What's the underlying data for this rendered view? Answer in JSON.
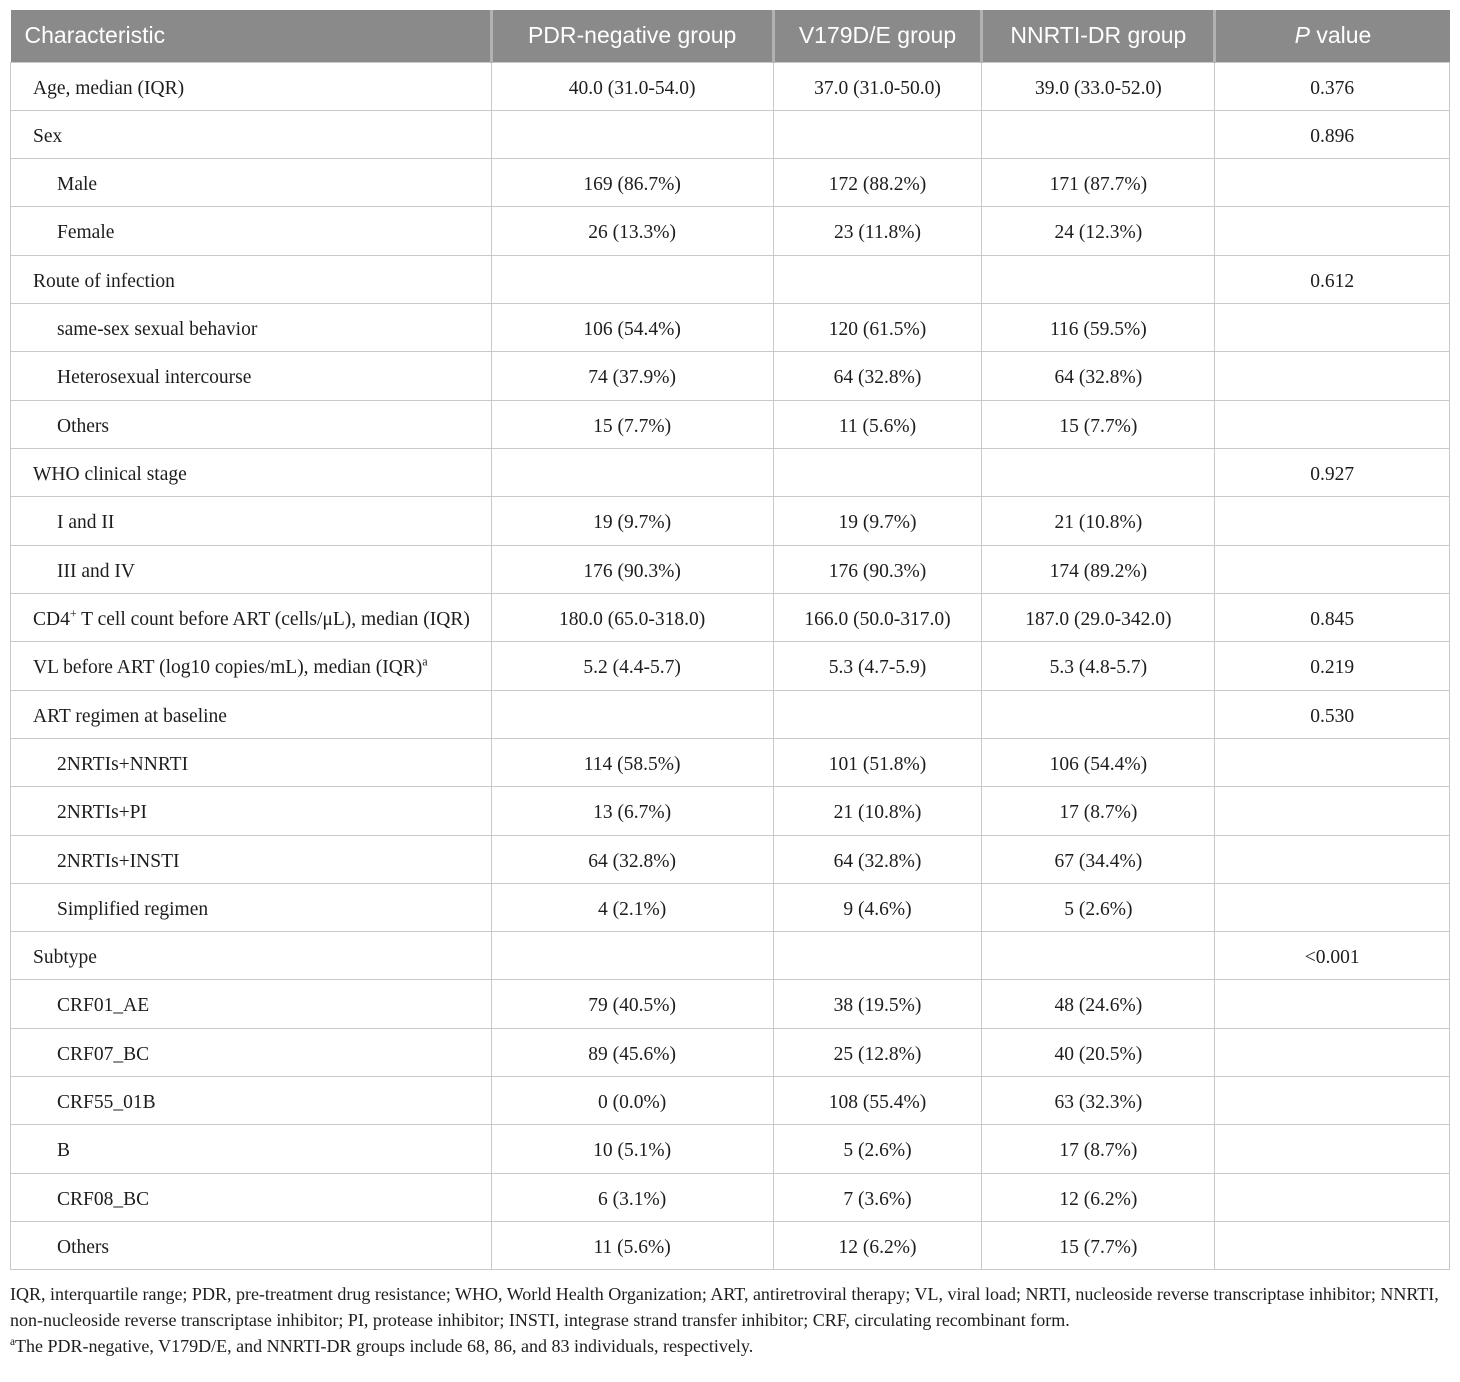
{
  "colors": {
    "header_bg": "#8a8a8a",
    "header_divider": "#b2b2b2",
    "header_text": "#ffffff",
    "grid": "#c9c9c9",
    "body_text": "#1d1d1d"
  },
  "table": {
    "columns": [
      "Characteristic",
      "PDR-negative group",
      "V179D/E group",
      "NNRTI-DR group",
      "*P* value"
    ],
    "rows": [
      {
        "label": "Age, median (IQR)",
        "indent": false,
        "values": [
          "40.0 (31.0-54.0)",
          "37.0 (31.0-50.0)",
          "39.0 (33.0-52.0)"
        ],
        "p": "0.376"
      },
      {
        "label": "Sex",
        "indent": false,
        "values": [
          "",
          "",
          ""
        ],
        "p": "0.896"
      },
      {
        "label": "Male",
        "indent": true,
        "values": [
          "169 (86.7%)",
          "172 (88.2%)",
          "171 (87.7%)"
        ],
        "p": ""
      },
      {
        "label": "Female",
        "indent": true,
        "values": [
          "26 (13.3%)",
          "23 (11.8%)",
          "24 (12.3%)"
        ],
        "p": ""
      },
      {
        "label": "Route of infection",
        "indent": false,
        "values": [
          "",
          "",
          ""
        ],
        "p": "0.612"
      },
      {
        "label": "same-sex sexual behavior",
        "indent": true,
        "values": [
          "106 (54.4%)",
          "120 (61.5%)",
          "116 (59.5%)"
        ],
        "p": ""
      },
      {
        "label": "Heterosexual intercourse",
        "indent": true,
        "values": [
          "74 (37.9%)",
          "64 (32.8%)",
          "64 (32.8%)"
        ],
        "p": ""
      },
      {
        "label": "Others",
        "indent": true,
        "values": [
          "15 (7.7%)",
          "11 (5.6%)",
          "15 (7.7%)"
        ],
        "p": ""
      },
      {
        "label": "WHO clinical stage",
        "indent": false,
        "values": [
          "",
          "",
          ""
        ],
        "p": "0.927"
      },
      {
        "label": "I and II",
        "indent": true,
        "values": [
          "19 (9.7%)",
          "19 (9.7%)",
          "21 (10.8%)"
        ],
        "p": ""
      },
      {
        "label": "III and IV",
        "indent": true,
        "values": [
          "176 (90.3%)",
          "176 (90.3%)",
          "174 (89.2%)"
        ],
        "p": ""
      },
      {
        "label": "CD4^+^ T cell count before ART (cells/μL), median (IQR)",
        "indent": false,
        "values": [
          "180.0 (65.0-318.0)",
          "166.0 (50.0-317.0)",
          "187.0 (29.0-342.0)"
        ],
        "p": "0.845"
      },
      {
        "label": "VL before ART (log10 copies/mL), median (IQR)^a^",
        "indent": false,
        "values": [
          "5.2 (4.4-5.7)",
          "5.3 (4.7-5.9)",
          "5.3 (4.8-5.7)"
        ],
        "p": "0.219"
      },
      {
        "label": "ART regimen at baseline",
        "indent": false,
        "values": [
          "",
          "",
          ""
        ],
        "p": "0.530"
      },
      {
        "label": "2NRTIs+NNRTI",
        "indent": true,
        "values": [
          "114 (58.5%)",
          "101 (51.8%)",
          "106 (54.4%)"
        ],
        "p": ""
      },
      {
        "label": "2NRTIs+PI",
        "indent": true,
        "values": [
          "13 (6.7%)",
          "21 (10.8%)",
          "17 (8.7%)"
        ],
        "p": ""
      },
      {
        "label": "2NRTIs+INSTI",
        "indent": true,
        "values": [
          "64 (32.8%)",
          "64 (32.8%)",
          "67 (34.4%)"
        ],
        "p": ""
      },
      {
        "label": "Simplified regimen",
        "indent": true,
        "values": [
          "4 (2.1%)",
          "9 (4.6%)",
          "5 (2.6%)"
        ],
        "p": ""
      },
      {
        "label": "Subtype",
        "indent": false,
        "values": [
          "",
          "",
          ""
        ],
        "p": "<0.001"
      },
      {
        "label": "CRF01_AE",
        "indent": true,
        "values": [
          "79 (40.5%)",
          "38 (19.5%)",
          "48 (24.6%)"
        ],
        "p": ""
      },
      {
        "label": "CRF07_BC",
        "indent": true,
        "values": [
          "89 (45.6%)",
          "25 (12.8%)",
          "40 (20.5%)"
        ],
        "p": ""
      },
      {
        "label": "CRF55_01B",
        "indent": true,
        "values": [
          "0 (0.0%)",
          "108 (55.4%)",
          "63 (32.3%)"
        ],
        "p": ""
      },
      {
        "label": "B",
        "indent": true,
        "values": [
          "10 (5.1%)",
          "5 (2.6%)",
          "17 (8.7%)"
        ],
        "p": ""
      },
      {
        "label": "CRF08_BC",
        "indent": true,
        "values": [
          "6 (3.1%)",
          "7 (3.6%)",
          "12 (6.2%)"
        ],
        "p": ""
      },
      {
        "label": "Others",
        "indent": true,
        "values": [
          "11 (5.6%)",
          "12 (6.2%)",
          "15 (7.7%)"
        ],
        "p": ""
      }
    ]
  },
  "footnotes": [
    "IQR, interquartile range; PDR, pre-treatment drug resistance; WHO, World Health Organization; ART, antiretroviral therapy; VL, viral load; NRTI, nucleoside reverse transcriptase inhibitor; NNRTI, non-nucleoside reverse transcriptase inhibitor; PI, protease inhibitor; INSTI, integrase strand transfer inhibitor; CRF, circulating recombinant form.",
    "^a^The PDR-negative, V179D/E, and NNRTI-DR groups include 68, 86, and 83 individuals, respectively."
  ]
}
